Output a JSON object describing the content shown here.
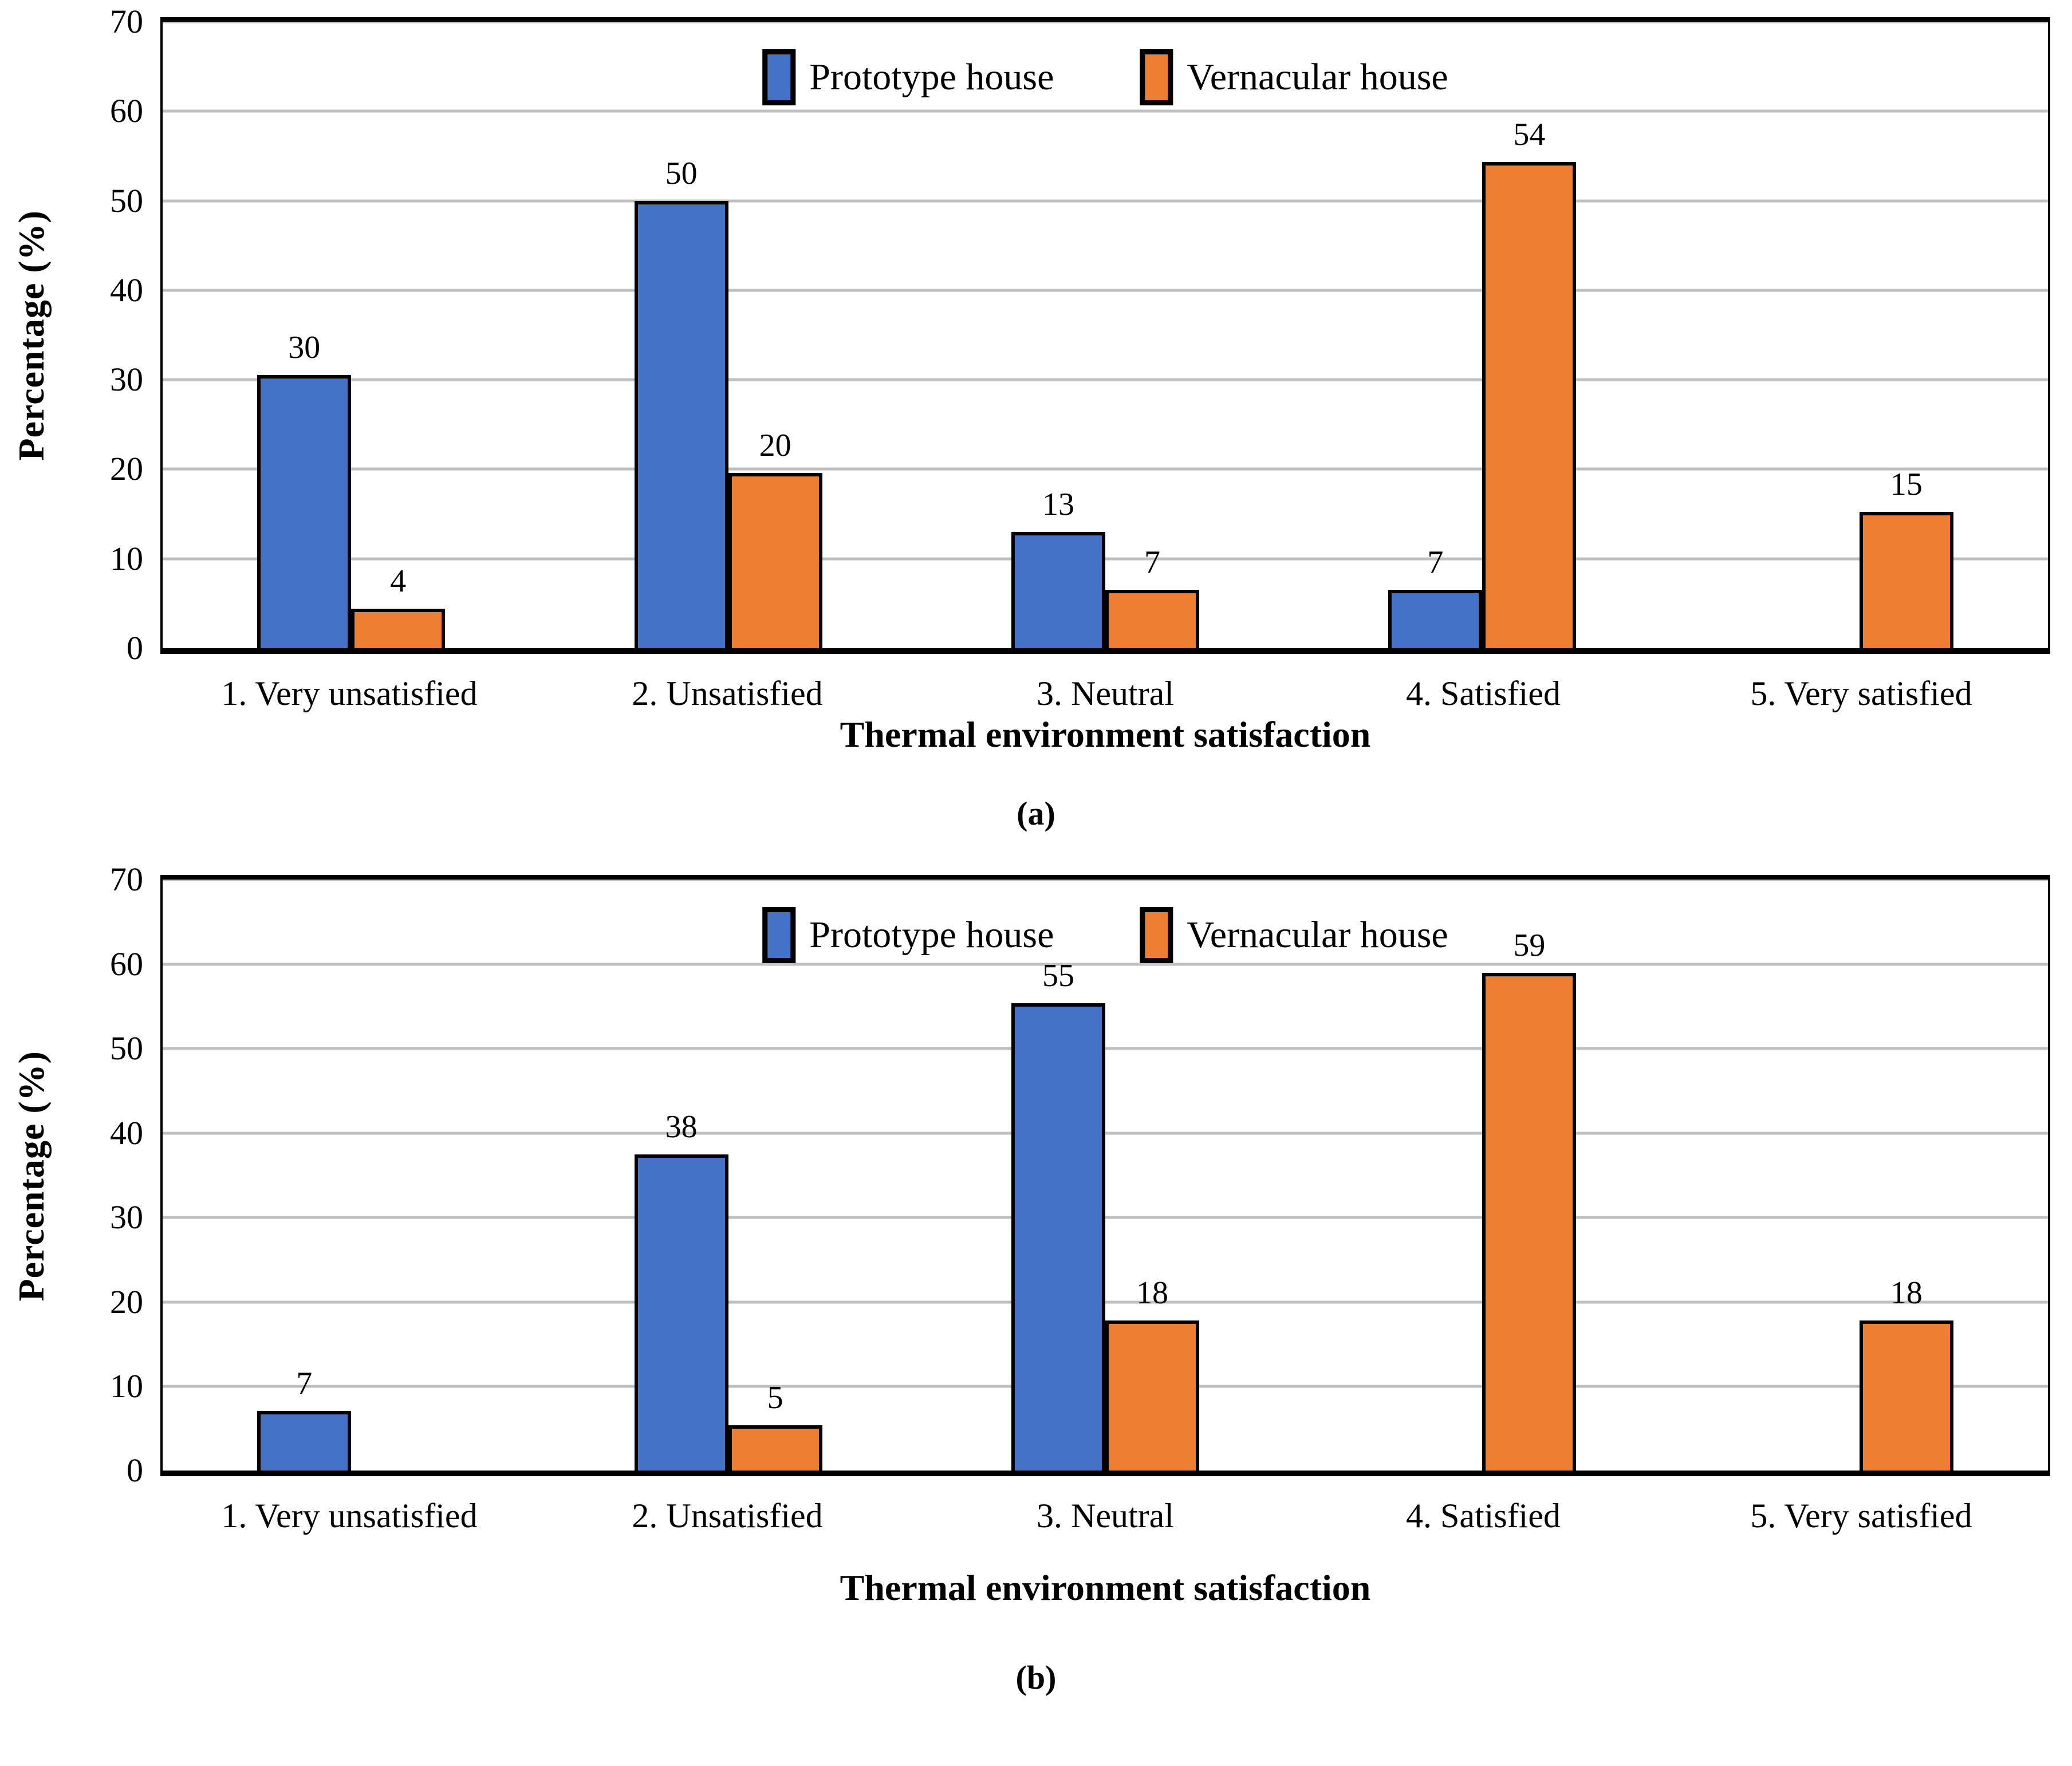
{
  "palette": {
    "prototype_blue": "#4472C4",
    "vernacular_orange": "#ED7D31",
    "gridline_gray": "#BFBFBF",
    "axis_black": "#000000"
  },
  "chart_data": [
    {
      "type": "bar",
      "caption": "(a)",
      "xlabel": "Thermal environment satisfaction",
      "ylabel": "Percentage (%)",
      "ylim": [
        0,
        70
      ],
      "yticks": [
        0,
        10,
        20,
        30,
        40,
        50,
        60,
        70
      ],
      "grid": "horizontal",
      "legend_position": "top-center-inside",
      "categories": [
        "1. Very unsatisfied",
        "2. Unsatisfied",
        "3. Neutral",
        "4. Satisfied",
        "5. Very satisfied"
      ],
      "series": [
        {
          "name": "Prototype house",
          "color": "#4472C4",
          "values": [
            30,
            50,
            13,
            7,
            0
          ],
          "data_labels": [
            "30",
            "50",
            "13",
            "7",
            ""
          ],
          "bar_heights_pct": [
            30.5,
            50,
            13,
            6.5,
            0
          ]
        },
        {
          "name": "Vernacular house",
          "color": "#ED7D31",
          "values": [
            4,
            20,
            7,
            54,
            15
          ],
          "data_labels": [
            "4",
            "20",
            "7",
            "54",
            "15"
          ],
          "bar_heights_pct": [
            4.4,
            19.6,
            6.5,
            54.3,
            15.2
          ]
        }
      ]
    },
    {
      "type": "bar",
      "caption": "(b)",
      "xlabel": "Thermal environment satisfaction",
      "ylabel": "Percentage (%)",
      "ylim": [
        0,
        70
      ],
      "yticks": [
        0,
        10,
        20,
        30,
        40,
        50,
        60,
        70
      ],
      "grid": "horizontal",
      "legend_position": "top-center-inside",
      "categories": [
        "1. Very unsatisfied",
        "2. Unsatisfied",
        "3. Neutral",
        "4. Satisfied",
        "5. Very satisfied"
      ],
      "series": [
        {
          "name": "Prototype house",
          "color": "#4472C4",
          "values": [
            7,
            38,
            55,
            0,
            0
          ],
          "data_labels": [
            "7",
            "38",
            "55",
            "",
            ""
          ],
          "bar_heights_pct": [
            7.1,
            37.5,
            55.4,
            0,
            0
          ]
        },
        {
          "name": "Vernacular house",
          "color": "#ED7D31",
          "values": [
            0,
            5,
            18,
            59,
            18
          ],
          "data_labels": [
            "",
            "5",
            "18",
            "59",
            "18"
          ],
          "bar_heights_pct": [
            0,
            5.4,
            17.8,
            59,
            17.8
          ]
        }
      ]
    }
  ]
}
